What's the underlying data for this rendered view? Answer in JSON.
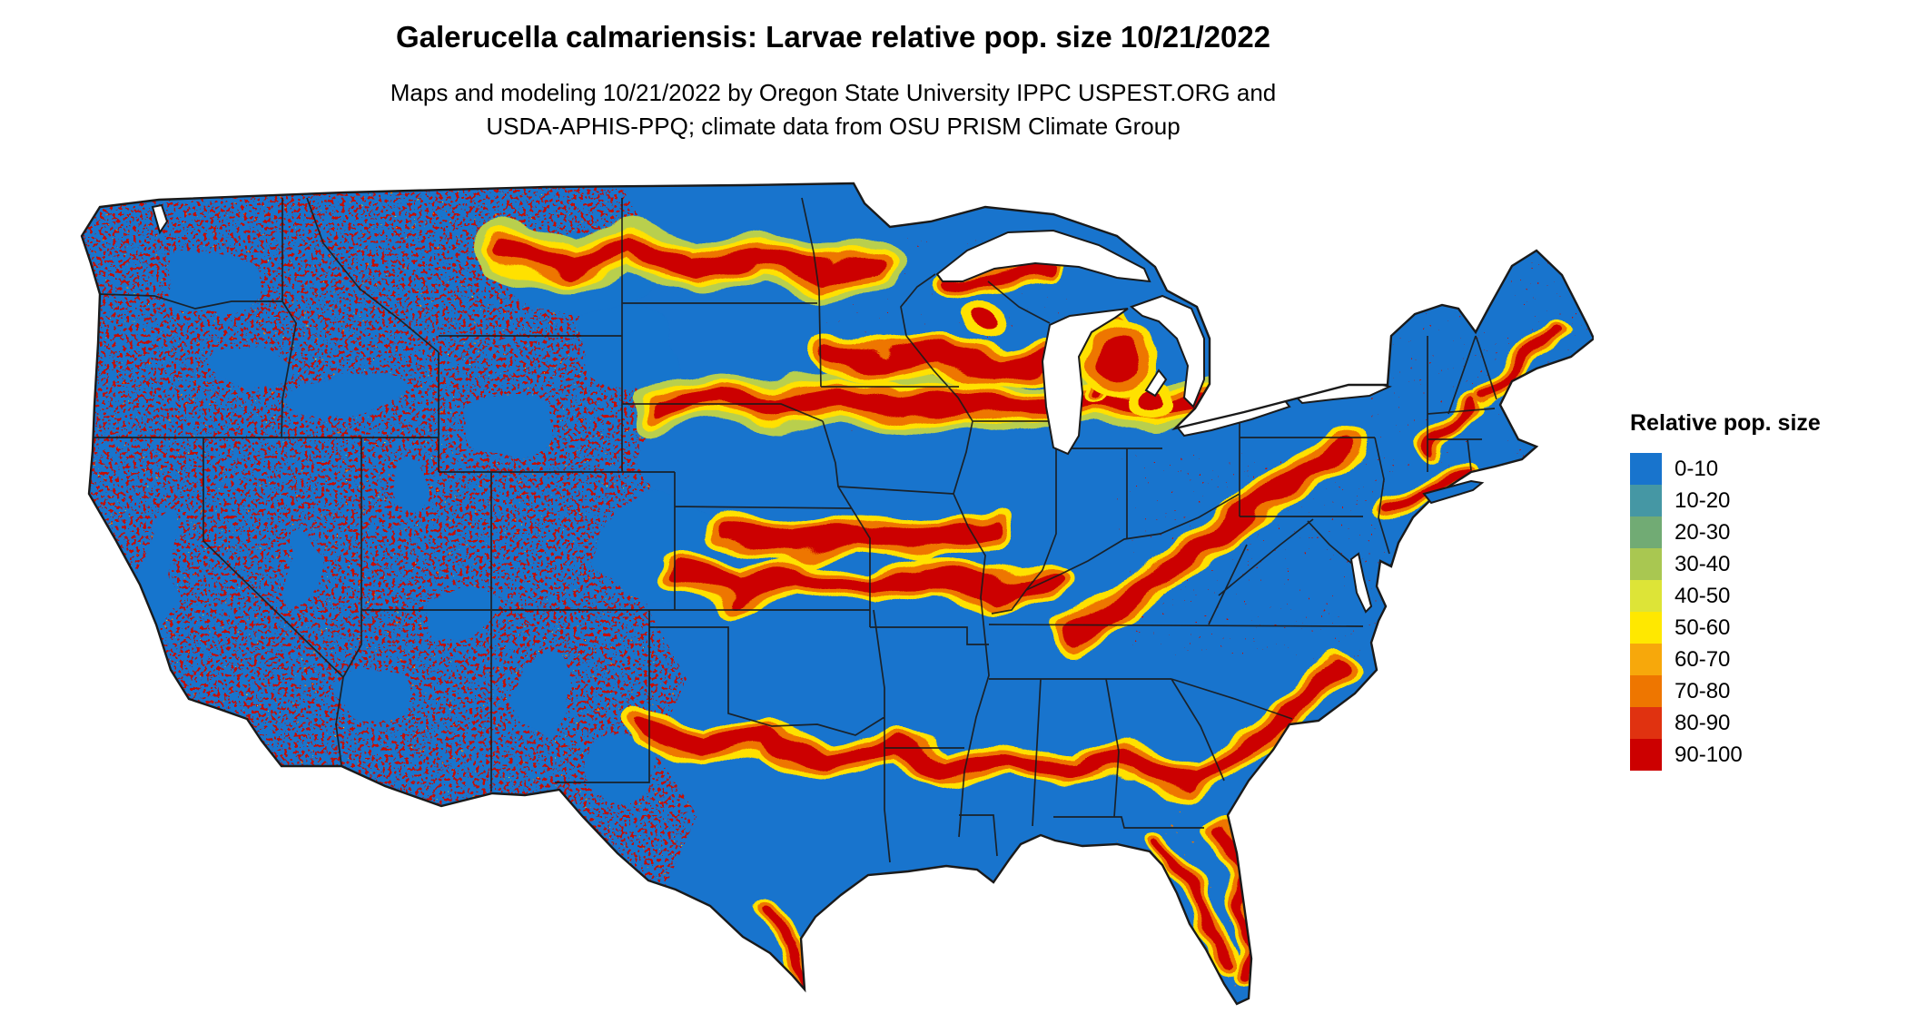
{
  "figure": {
    "title": "Galerucella calmariensis: Larvae relative pop. size 10/21/2022",
    "subtitle_line1": "Maps and modeling 10/21/2022 by Oregon State University IPPC USPEST.ORG and",
    "subtitle_line2": "USDA-APHIS-PPQ; climate data from OSU PRISM Climate Group"
  },
  "legend": {
    "title": "Relative pop. size",
    "items": [
      {
        "label": "0-10",
        "color": "#1874CD"
      },
      {
        "label": "10-20",
        "color": "#4597A4"
      },
      {
        "label": "20-30",
        "color": "#71AB74"
      },
      {
        "label": "30-40",
        "color": "#A9C751"
      },
      {
        "label": "40-50",
        "color": "#DDE437"
      },
      {
        "label": "50-60",
        "color": "#FFE800"
      },
      {
        "label": "60-70",
        "color": "#F7A80B"
      },
      {
        "label": "70-80",
        "color": "#EE7600"
      },
      {
        "label": "80-90",
        "color": "#E03210"
      },
      {
        "label": "90-100",
        "color": "#CC0000"
      }
    ]
  },
  "palette": {
    "base": "#1874CD",
    "speckle-red": "#C80A00",
    "speckle-orange": "#EE7600",
    "band-core": "#CC0000",
    "band-mid": "#EE7600",
    "band-fringe": "#FFE100",
    "band-outer": "#B9CF4E",
    "border": "#1A1A1A",
    "water": "#FFFFFF"
  },
  "map": {
    "region": "Continental United States",
    "dominant_class": "0-10 (blue)",
    "pattern_note": "fine red/orange speckle over the mountain West; red bands with yellow-orange fringes across the northern plains, central Midwest, mid-South, Gulf states, Appalachians, coastal Florida and New England; state borders drawn in black"
  },
  "chart_data": {
    "type": "heatmap",
    "title": "Galerucella calmariensis: Larvae relative pop. size 10/21/2022",
    "legend_title": "Relative pop. size",
    "categories": [
      "0-10",
      "10-20",
      "20-30",
      "30-40",
      "40-50",
      "50-60",
      "60-70",
      "70-80",
      "80-90",
      "90-100"
    ],
    "colors": [
      "#1874CD",
      "#4597A4",
      "#71AB74",
      "#A9C751",
      "#DDE437",
      "#FFE800",
      "#F7A80B",
      "#EE7600",
      "#E03210",
      "#CC0000"
    ],
    "units": "relative population size (0-100)",
    "legend_position": "right"
  }
}
